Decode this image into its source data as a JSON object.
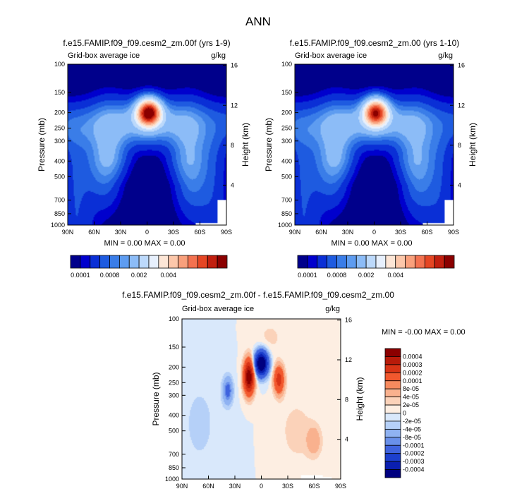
{
  "figure": {
    "title": "ANN",
    "panel_label": "Grid-box average ice",
    "units": "g/kg",
    "y_left_label": "Pressure (mb)",
    "y_right_label": "Height (km)"
  },
  "chart_data": [
    {
      "type": "heatmap",
      "title": "f.e15.FAMIP.f09_f09.cesm2_zm.00f (yrs 1-9)",
      "subtitle": "Grid-box average ice",
      "units": "g/kg",
      "xlabel": "",
      "ylabel": "Pressure (mb)",
      "ylabel_right": "Height (km)",
      "x_ticks": [
        "90N",
        "60N",
        "30N",
        "0",
        "30S",
        "60S",
        "90S"
      ],
      "y_ticks": [
        "100",
        "150",
        "200",
        "250",
        "300",
        "400",
        "500",
        "700",
        "850",
        "1000"
      ],
      "y_ticks_right": [
        "16",
        "12",
        "8",
        "4"
      ],
      "stats": "MIN =   0.00  MAX =   0.00",
      "colorbar_ticks": [
        "0.0001",
        "0.0008",
        "0.002",
        "0.004"
      ],
      "peak": {
        "lat": -5,
        "pressure_mb": 200,
        "value": 0.005
      }
    },
    {
      "type": "heatmap",
      "title": "f.e15.FAMIP.f09_f09.cesm2_zm.00 (yrs 1-10)",
      "subtitle": "Grid-box average ice",
      "units": "g/kg",
      "xlabel": "",
      "ylabel": "Pressure (mb)",
      "ylabel_right": "Height (km)",
      "x_ticks": [
        "90N",
        "60N",
        "30N",
        "0",
        "30S",
        "60S",
        "90S"
      ],
      "y_ticks": [
        "100",
        "150",
        "200",
        "250",
        "300",
        "400",
        "500",
        "700",
        "850",
        "1000"
      ],
      "y_ticks_right": [
        "16",
        "12",
        "8",
        "4"
      ],
      "stats": "MIN =   0.00  MAX =   0.00",
      "colorbar_ticks": [
        "0.0001",
        "0.0008",
        "0.002",
        "0.004"
      ],
      "peak": {
        "lat": -5,
        "pressure_mb": 200,
        "value": 0.004
      }
    },
    {
      "type": "heatmap",
      "title": "f.e15.FAMIP.f09_f09.cesm2_zm.00f - f.e15.FAMIP.f09_f09.cesm2_zm.00",
      "subtitle": "Grid-box average ice",
      "units": "g/kg",
      "xlabel": "",
      "ylabel": "Pressure (mb)",
      "ylabel_right": "Height (km)",
      "x_ticks": [
        "90N",
        "60N",
        "30N",
        "0",
        "30S",
        "60S",
        "90S"
      ],
      "y_ticks": [
        "100",
        "150",
        "200",
        "250",
        "300",
        "400",
        "500",
        "700",
        "850",
        "1000"
      ],
      "y_ticks_right": [
        "16",
        "12",
        "8",
        "4"
      ],
      "stats": "MIN =  -0.00  MAX =   0.00",
      "colorbar_ticks": [
        "0.0004",
        "0.0003",
        "0.0002",
        "0.0001",
        "8e-05",
        "4e-05",
        "2e-05",
        "0",
        "-2e-05",
        "-4e-05",
        "-8e-05",
        "-0.0001",
        "-0.0002",
        "-0.0003",
        "-0.0004"
      ],
      "features": [
        {
          "lat": 0,
          "pressure_mb": 200,
          "value": -0.0004
        },
        {
          "lat": 15,
          "pressure_mb": 220,
          "value": 0.0004
        },
        {
          "lat": -18,
          "pressure_mb": 230,
          "value": 0.0002
        },
        {
          "lat": 38,
          "pressure_mb": 270,
          "value": -0.0001
        },
        {
          "lat": -60,
          "pressure_mb": 580,
          "value": 4e-05
        }
      ]
    }
  ],
  "colors": {
    "abs_scale": [
      "#00008b",
      "#0000cd",
      "#0a2fd6",
      "#1e5be0",
      "#3a7de8",
      "#5e9cf0",
      "#8cbcf7",
      "#bcd9fb",
      "#e7f0fd",
      "#fde6d6",
      "#fcc7aa",
      "#f9a07c",
      "#f37250",
      "#e54624",
      "#c11f0f",
      "#8b0000"
    ],
    "diff_scale": [
      "#8b0000",
      "#b81b0a",
      "#d93416",
      "#f2582e",
      "#f78a5e",
      "#f9b18e",
      "#fbd2b9",
      "#fdeee2",
      "#d9e8fb",
      "#b5d0f8",
      "#8fb2f2",
      "#6990ea",
      "#3f63de",
      "#1c3fce",
      "#0a1fb0",
      "#000080"
    ],
    "missing": "#ffffff"
  }
}
